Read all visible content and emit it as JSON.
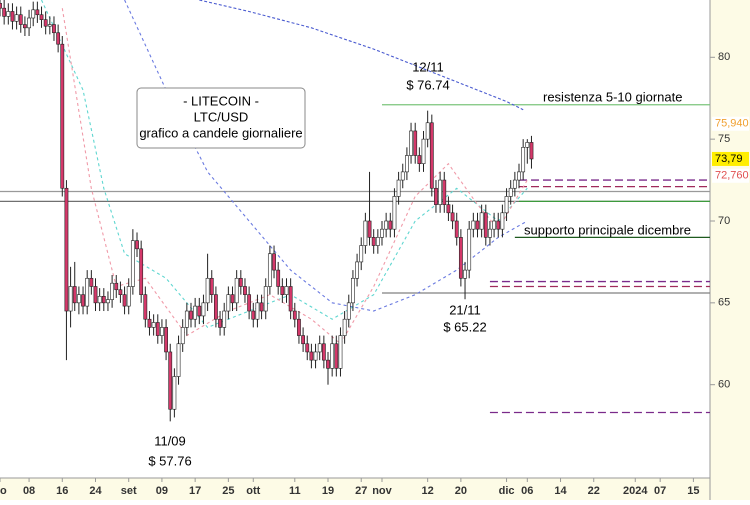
{
  "chart_data": {
    "type": "candlestick",
    "annotations": [
      {
        "lines": [
          "12/11",
          "$ 76.74"
        ]
      },
      {
        "lines": [
          "21/11",
          "$ 65.22"
        ]
      },
      {
        "lines": [
          "11/09",
          "$ 57.76"
        ]
      }
    ],
    "info_box": [
      "- LITECOIN -",
      "LTC/USD",
      "grafico a candele giornaliere"
    ],
    "level_labels": [
      "resistenza 5-10 giornate",
      "supporto principale dicembre"
    ],
    "xlim": [
      0,
      171
    ],
    "ylim": [
      54.3,
      83.5
    ],
    "yticks": [
      60,
      65,
      70,
      75,
      80
    ],
    "xticks": [
      {
        "value": 0,
        "label": "go"
      },
      {
        "value": 7,
        "label": "08"
      },
      {
        "value": 15,
        "label": "16"
      },
      {
        "value": 23,
        "label": "24"
      },
      {
        "value": 31,
        "label": "set"
      },
      {
        "value": 39,
        "label": "09"
      },
      {
        "value": 47,
        "label": "17"
      },
      {
        "value": 55,
        "label": "25"
      },
      {
        "value": 61,
        "label": "ott"
      },
      {
        "value": 71,
        "label": "11"
      },
      {
        "value": 79,
        "label": "19"
      },
      {
        "value": 87,
        "label": "27"
      },
      {
        "value": 92,
        "label": "nov"
      },
      {
        "value": 103,
        "label": "12"
      },
      {
        "value": 111,
        "label": "20"
      },
      {
        "value": 122,
        "label": "dic"
      },
      {
        "value": 127,
        "label": "06"
      },
      {
        "value": 135,
        "label": "14"
      },
      {
        "value": 143,
        "label": "22"
      },
      {
        "value": 153,
        "label": "2024"
      },
      {
        "value": 159,
        "label": "07"
      },
      {
        "value": 167,
        "label": "15"
      }
    ],
    "up_color": "#ffffff",
    "down_color": "#d4386a",
    "x": [
      0,
      1,
      2,
      3,
      4,
      5,
      6,
      7,
      8,
      9,
      10,
      11,
      12,
      13,
      14,
      15,
      16,
      17,
      18,
      19,
      20,
      21,
      22,
      23,
      24,
      25,
      26,
      27,
      28,
      29,
      30,
      31,
      32,
      33,
      34,
      35,
      36,
      37,
      38,
      39,
      40,
      41,
      42,
      43,
      44,
      45,
      46,
      47,
      48,
      49,
      50,
      51,
      52,
      53,
      54,
      55,
      56,
      57,
      58,
      59,
      60,
      61,
      62,
      63,
      64,
      65,
      66,
      67,
      68,
      69,
      70,
      71,
      72,
      73,
      74,
      75,
      76,
      77,
      78,
      79,
      80,
      81,
      82,
      83,
      84,
      85,
      86,
      87,
      88,
      89,
      90,
      91,
      92,
      93,
      94,
      95,
      96,
      97,
      98,
      99,
      100,
      101,
      102,
      103,
      104,
      105,
      106,
      107,
      108,
      109,
      110,
      111,
      112,
      113,
      114,
      115,
      116,
      117,
      118,
      119,
      120,
      121,
      122,
      123,
      124,
      125,
      126,
      127,
      128
    ],
    "ohlc": [
      [
        83.3,
        83.8,
        82.5,
        83.0
      ],
      [
        83.0,
        83.5,
        82.0,
        82.5
      ],
      [
        82.5,
        83.3,
        82.0,
        82.8
      ],
      [
        82.8,
        83.3,
        81.7,
        82.2
      ],
      [
        82.2,
        83.1,
        81.7,
        82.6
      ],
      [
        82.6,
        83.1,
        81.5,
        82.0
      ],
      [
        82.0,
        82.5,
        81.3,
        81.8
      ],
      [
        81.8,
        82.9,
        81.3,
        82.4
      ],
      [
        82.4,
        83.4,
        81.9,
        82.9
      ],
      [
        82.9,
        83.4,
        82.1,
        82.6
      ],
      [
        82.6,
        83.1,
        81.8,
        82.3
      ],
      [
        82.3,
        82.8,
        81.4,
        81.9
      ],
      [
        81.9,
        82.5,
        81.4,
        82.0
      ],
      [
        82.0,
        82.5,
        81.0,
        81.5
      ],
      [
        81.5,
        82.0,
        80.3,
        80.8
      ],
      [
        80.8,
        81.3,
        71.5,
        72.0
      ],
      [
        72.0,
        72.5,
        61.5,
        64.5
      ],
      [
        64.5,
        67.2,
        63.5,
        66.0
      ],
      [
        66.0,
        67.5,
        64.5,
        65.0
      ],
      [
        65.0,
        66.0,
        64.3,
        65.5
      ],
      [
        65.5,
        66.0,
        64.3,
        64.8
      ],
      [
        64.8,
        67.0,
        64.3,
        66.5
      ],
      [
        66.5,
        67.0,
        65.5,
        66.0
      ],
      [
        66.0,
        66.5,
        64.5,
        65.0
      ],
      [
        65.0,
        65.9,
        64.5,
        65.4
      ],
      [
        65.4,
        65.9,
        64.5,
        65.0
      ],
      [
        65.0,
        65.7,
        64.5,
        65.2
      ],
      [
        65.2,
        66.7,
        64.7,
        66.2
      ],
      [
        66.2,
        66.7,
        65.3,
        65.8
      ],
      [
        65.8,
        66.3,
        65.0,
        65.5
      ],
      [
        65.5,
        66.0,
        64.3,
        64.8
      ],
      [
        64.8,
        66.5,
        64.3,
        66.0
      ],
      [
        66.0,
        69.5,
        65.5,
        68.8
      ],
      [
        68.8,
        69.3,
        67.8,
        68.3
      ],
      [
        68.3,
        68.8,
        65.0,
        65.5
      ],
      [
        65.5,
        66.0,
        63.5,
        64.0
      ],
      [
        64.0,
        64.5,
        63.0,
        63.5
      ],
      [
        63.5,
        64.3,
        63.0,
        63.8
      ],
      [
        63.8,
        64.3,
        62.5,
        63.0
      ],
      [
        63.0,
        64.0,
        62.5,
        63.5
      ],
      [
        63.5,
        64.0,
        61.5,
        62.0
      ],
      [
        62.0,
        62.5,
        57.76,
        58.5
      ],
      [
        58.5,
        61.0,
        58.0,
        60.5
      ],
      [
        60.5,
        63.0,
        60.0,
        62.5
      ],
      [
        62.5,
        64.0,
        62.0,
        63.5
      ],
      [
        63.5,
        65.0,
        63.0,
        64.5
      ],
      [
        64.5,
        65.0,
        63.5,
        64.0
      ],
      [
        64.0,
        65.3,
        63.5,
        64.8
      ],
      [
        64.8,
        65.3,
        63.7,
        64.2
      ],
      [
        64.2,
        65.5,
        63.7,
        65.0
      ],
      [
        65.0,
        68.0,
        64.5,
        66.5
      ],
      [
        66.5,
        67.0,
        65.0,
        65.5
      ],
      [
        65.5,
        66.0,
        63.5,
        64.0
      ],
      [
        64.0,
        64.5,
        63.0,
        63.5
      ],
      [
        63.5,
        65.0,
        63.0,
        64.5
      ],
      [
        64.5,
        66.0,
        64.0,
        65.5
      ],
      [
        65.5,
        66.0,
        64.5,
        65.0
      ],
      [
        65.0,
        67.0,
        64.5,
        66.5
      ],
      [
        66.5,
        67.0,
        65.5,
        66.0
      ],
      [
        66.0,
        66.5,
        65.0,
        65.5
      ],
      [
        65.5,
        66.0,
        64.0,
        64.5
      ],
      [
        64.5,
        65.0,
        63.5,
        64.0
      ],
      [
        64.0,
        65.5,
        63.5,
        65.0
      ],
      [
        65.0,
        65.5,
        64.0,
        64.5
      ],
      [
        64.5,
        66.5,
        64.0,
        66.0
      ],
      [
        66.0,
        68.5,
        65.5,
        68.0
      ],
      [
        68.0,
        68.5,
        66.5,
        67.0
      ],
      [
        67.0,
        67.5,
        65.5,
        66.0
      ],
      [
        66.0,
        66.5,
        65.0,
        65.5
      ],
      [
        65.5,
        66.5,
        65.0,
        66.0
      ],
      [
        66.0,
        66.5,
        64.0,
        64.5
      ],
      [
        64.5,
        65.0,
        63.5,
        64.0
      ],
      [
        64.0,
        64.5,
        62.5,
        63.0
      ],
      [
        63.0,
        63.5,
        62.0,
        62.5
      ],
      [
        62.5,
        63.0,
        61.5,
        62.0
      ],
      [
        62.0,
        62.5,
        61.0,
        61.5
      ],
      [
        61.5,
        62.5,
        61.0,
        62.0
      ],
      [
        62.0,
        63.0,
        61.5,
        62.5
      ],
      [
        62.5,
        63.0,
        61.0,
        61.5
      ],
      [
        61.5,
        62.0,
        60.0,
        61.0
      ],
      [
        61.0,
        63.0,
        60.5,
        62.5
      ],
      [
        62.5,
        63.0,
        60.5,
        61.0
      ],
      [
        61.0,
        63.5,
        60.5,
        63.0
      ],
      [
        63.0,
        64.5,
        62.5,
        64.0
      ],
      [
        64.0,
        65.5,
        63.5,
        65.0
      ],
      [
        65.0,
        67.0,
        64.5,
        66.5
      ],
      [
        66.5,
        68.0,
        66.0,
        67.5
      ],
      [
        67.5,
        69.0,
        67.0,
        68.5
      ],
      [
        68.5,
        70.5,
        68.0,
        70.0
      ],
      [
        70.0,
        73.0,
        68.5,
        69.0
      ],
      [
        69.0,
        69.5,
        68.0,
        68.5
      ],
      [
        68.5,
        69.5,
        68.0,
        69.0
      ],
      [
        69.0,
        70.0,
        68.5,
        69.5
      ],
      [
        69.5,
        70.5,
        69.0,
        70.0
      ],
      [
        70.0,
        70.5,
        69.0,
        69.5
      ],
      [
        69.5,
        72.0,
        69.0,
        71.5
      ],
      [
        71.5,
        73.0,
        71.0,
        72.5
      ],
      [
        72.5,
        73.5,
        72.0,
        73.0
      ],
      [
        73.0,
        74.5,
        72.5,
        74.0
      ],
      [
        74.0,
        76.0,
        73.5,
        75.5
      ],
      [
        75.5,
        76.0,
        73.5,
        74.0
      ],
      [
        74.0,
        74.5,
        73.0,
        73.5
      ],
      [
        73.5,
        75.5,
        73.0,
        75.0
      ],
      [
        75.0,
        76.74,
        74.5,
        76.0
      ],
      [
        76.0,
        76.5,
        71.5,
        72.0
      ],
      [
        72.0,
        72.5,
        70.5,
        71.0
      ],
      [
        71.0,
        73.0,
        70.5,
        72.5
      ],
      [
        72.5,
        73.0,
        70.5,
        71.0
      ],
      [
        71.0,
        71.5,
        70.0,
        70.5
      ],
      [
        70.5,
        71.0,
        69.5,
        70.0
      ],
      [
        70.0,
        70.5,
        68.5,
        69.0
      ],
      [
        69.0,
        69.5,
        66.0,
        66.5
      ],
      [
        66.5,
        67.5,
        65.22,
        67.0
      ],
      [
        67.0,
        70.0,
        66.5,
        69.5
      ],
      [
        69.5,
        70.5,
        69.0,
        70.0
      ],
      [
        70.0,
        70.5,
        69.0,
        69.5
      ],
      [
        69.5,
        71.0,
        69.0,
        70.5
      ],
      [
        70.5,
        71.0,
        68.5,
        69.0
      ],
      [
        69.0,
        70.0,
        68.5,
        69.5
      ],
      [
        69.5,
        70.5,
        69.0,
        70.0
      ],
      [
        70.0,
        70.5,
        69.0,
        69.5
      ],
      [
        69.5,
        71.0,
        69.0,
        70.5
      ],
      [
        70.5,
        72.0,
        70.0,
        71.5
      ],
      [
        71.5,
        72.5,
        71.0,
        72.0
      ],
      [
        72.0,
        73.0,
        71.5,
        72.5
      ],
      [
        72.5,
        73.5,
        72.0,
        73.0
      ],
      [
        73.0,
        75.0,
        72.5,
        74.5
      ],
      [
        74.5,
        75.0,
        73.5,
        74.8
      ],
      [
        74.8,
        75.2,
        73.2,
        73.79
      ]
    ],
    "lines": [
      {
        "color": "#4a5bd0",
        "dash": "3 2",
        "x": [
          48,
          60,
          75,
          90,
          105,
          122,
          126
        ],
        "values": [
          83.5,
          82.8,
          81.8,
          80.5,
          79.0,
          77.3,
          76.8
        ]
      },
      {
        "color": "#6a7ae0",
        "dash": "3 3",
        "x": [
          30,
          40,
          50,
          60,
          70,
          80,
          90,
          100,
          110,
          120,
          127
        ],
        "values": [
          83.5,
          78.0,
          73.0,
          70.0,
          67.0,
          65.0,
          64.5,
          65.5,
          67.0,
          69.0,
          70.0
        ]
      },
      {
        "color": "#5fd6d0",
        "dash": "3 3",
        "x": [
          10,
          20,
          25,
          30,
          40,
          50,
          60,
          70,
          80,
          90,
          100,
          110,
          120,
          127
        ],
        "values": [
          83.5,
          78.0,
          72.0,
          68.0,
          66.5,
          63.5,
          64.5,
          65.5,
          64.0,
          65.5,
          70.0,
          72.0,
          70.0,
          72.0
        ]
      },
      {
        "color": "#f09aa8",
        "dash": "3 3",
        "x": [
          15,
          22,
          28,
          35,
          45,
          55,
          65,
          75,
          82,
          90,
          100,
          108,
          115,
          120,
          127
        ],
        "values": [
          83.0,
          72.0,
          66.0,
          66.5,
          63.0,
          64.5,
          65.5,
          64.0,
          62.5,
          66.0,
          71.5,
          73.5,
          71.0,
          69.5,
          72.5
        ]
      }
    ],
    "levels": [
      {
        "value": 77.1,
        "from": 92,
        "color": "#7cc47c",
        "dash": ""
      },
      {
        "value": 71.8,
        "from": 0,
        "color": "#9a9a9a",
        "dash": ""
      },
      {
        "value": 71.2,
        "from": 0,
        "color": "#707070",
        "dash": ""
      },
      {
        "value": 71.2,
        "from": 125,
        "color": "#3c9a3c",
        "dash": ""
      },
      {
        "value": 69.0,
        "from": 124,
        "color": "#1e5a1e",
        "dash": ""
      },
      {
        "value": 65.6,
        "from": 92,
        "color": "#808080",
        "dash": ""
      },
      {
        "value": 72.5,
        "from": 125,
        "color": "#7a2a8a",
        "dash": "8 4"
      },
      {
        "value": 72.1,
        "from": 125,
        "color": "#a02a5a",
        "dash": "8 4"
      },
      {
        "value": 66.3,
        "from": 118,
        "color": "#7a2a8a",
        "dash": "8 4"
      },
      {
        "value": 66.0,
        "from": 118,
        "color": "#a02a5a",
        "dash": "8 4"
      },
      {
        "value": 58.3,
        "from": 118,
        "color": "#7a2a8a",
        "dash": "8 4"
      }
    ],
    "price_labels": [
      {
        "value": 75.94,
        "label": "75,940",
        "color": "#f0a030",
        "bg": "#ffffff"
      },
      {
        "value": 73.79,
        "label": "73,79",
        "color": "#000000",
        "bg": "#ffee00"
      },
      {
        "value": 72.76,
        "label": "72,760",
        "color": "#e05050",
        "bg": "#ffffff"
      }
    ]
  }
}
